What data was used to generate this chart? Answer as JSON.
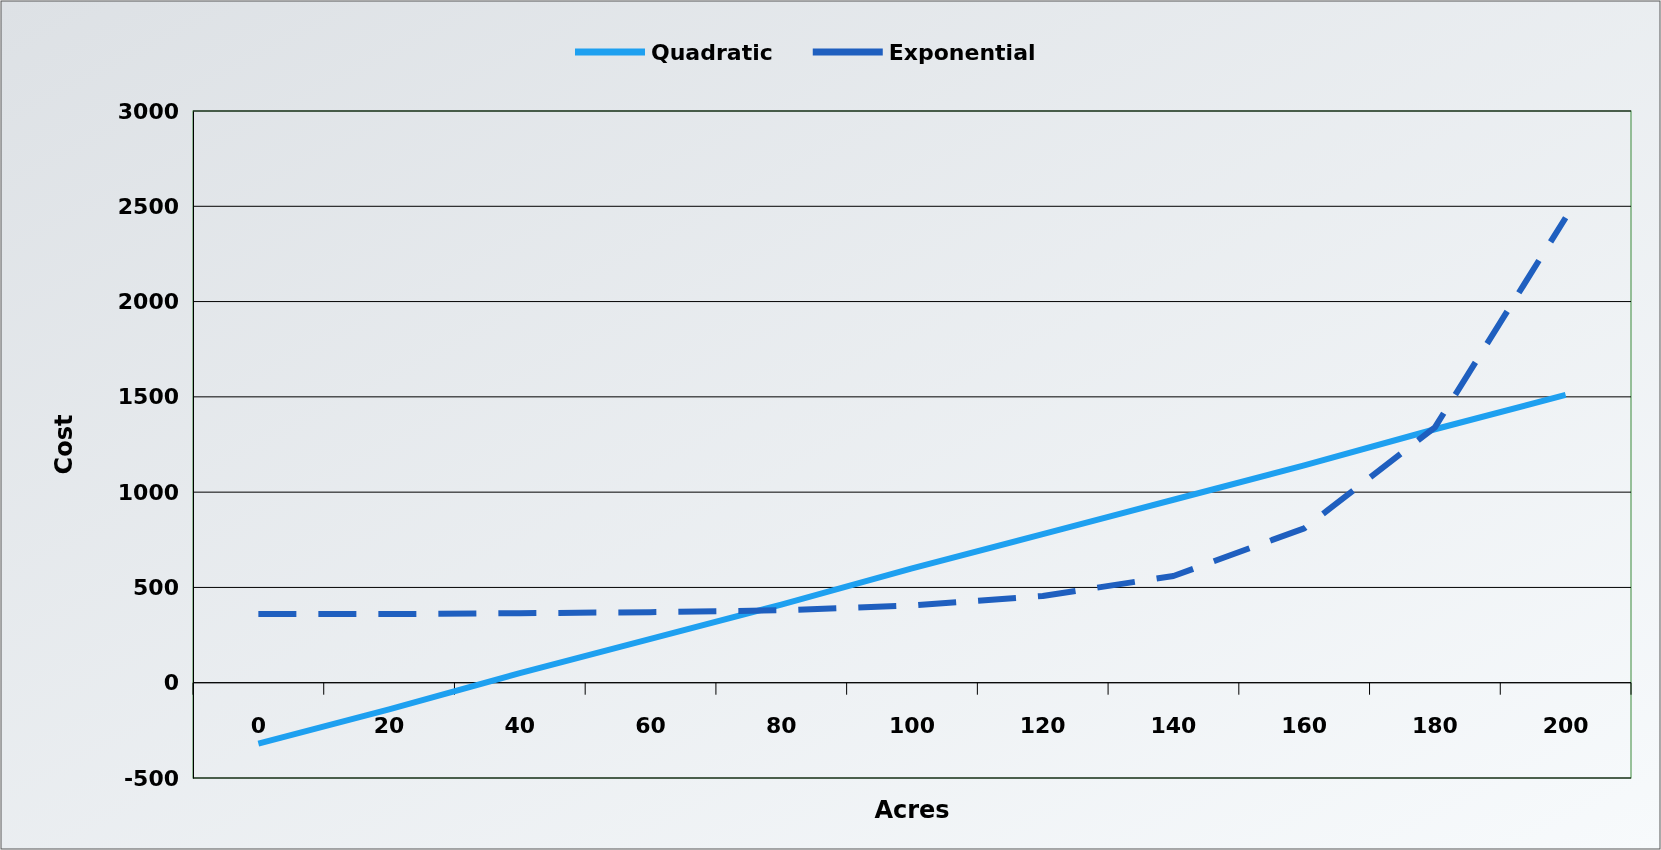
{
  "chart_data": {
    "type": "line",
    "xlabel": "Acres",
    "ylabel": "Cost",
    "categories": [
      "0",
      "20",
      "40",
      "60",
      "80",
      "100",
      "120",
      "140",
      "160",
      "180",
      "200"
    ],
    "series": [
      {
        "name": "Quadratic",
        "color": "#1ea0f0",
        "line_style": "solid",
        "values": [
          -320,
          -140,
          50,
          230,
          410,
          600,
          780,
          960,
          1140,
          1330,
          1510
        ]
      },
      {
        "name": "Exponential",
        "color": "#1f5fbf",
        "line_style": "dashed",
        "values": [
          360,
          360,
          365,
          370,
          380,
          405,
          455,
          560,
          810,
          1340,
          2440
        ]
      }
    ],
    "ylim": [
      -500,
      3000
    ],
    "yticks": [
      -500,
      0,
      500,
      1000,
      1500,
      2000,
      2500,
      3000
    ],
    "grid": "y",
    "legend": "top",
    "marker": "none"
  }
}
